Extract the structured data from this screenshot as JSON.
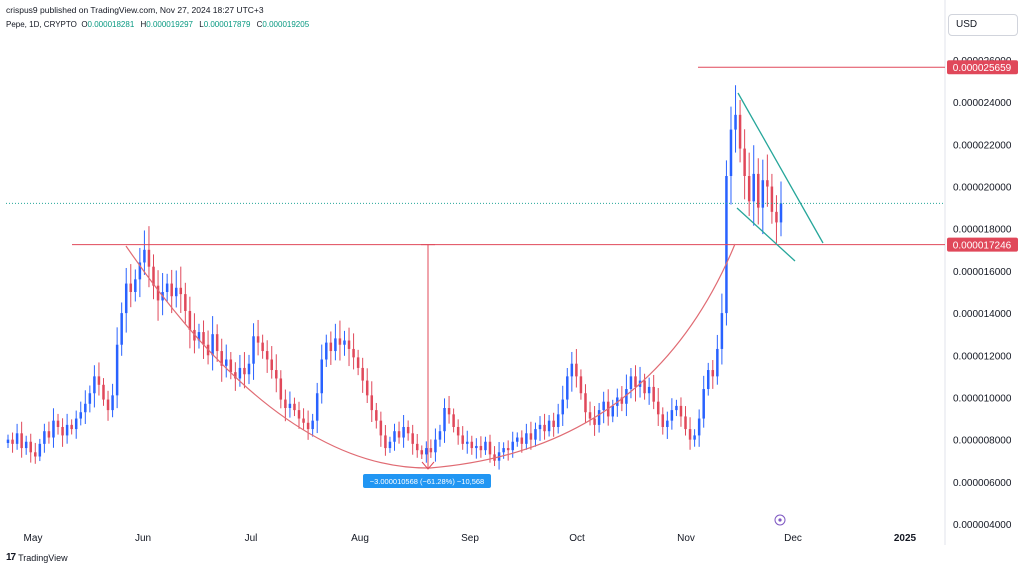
{
  "header": {
    "published": "crispus9 published on TradingView.com, Nov 27, 2024 18:27 UTC+3",
    "symbol": "Pepe, 1D, CRYPTO",
    "o_label": "O",
    "o_value": "0.000018281",
    "h_label": "H",
    "h_value": "0.000019297",
    "l_label": "L",
    "l_value": "0.000017879",
    "c_label": "C",
    "c_value": "0.000019205",
    "currency": "USD"
  },
  "footer": {
    "brand": "TradingView",
    "logo_icon": "tradingview-logo-icon"
  },
  "colors": {
    "up": "#2962ff",
    "down": "#e0485a",
    "level": "#e0485a",
    "wedge": "#26a69a",
    "cup": "#e06b73",
    "measure": "#2196f3"
  },
  "chart_data": {
    "type": "candlestick",
    "y_ticks": [
      "0.000026000",
      "0.000024000",
      "0.000022000",
      "0.000020000",
      "0.000018000",
      "0.000016000",
      "0.000014000",
      "0.000012000",
      "0.000010000",
      "0.000008000",
      "0.000006000",
      "0.000004000"
    ],
    "ylim": [
      4e-06,
      2.6e-05
    ],
    "x_ticks": [
      "May",
      "Jun",
      "Jul",
      "Aug",
      "Sep",
      "Oct",
      "Nov",
      "Dec",
      "2025"
    ],
    "levels": [
      {
        "label": "0.000025659",
        "value": 2.5659e-05
      },
      {
        "label": "0.000017246",
        "value": 1.7246e-05
      }
    ],
    "current_price": 1.9205e-05,
    "measure_label": "−3.000010568 (−61.28%) −10,568",
    "closes": [
      8.0,
      7.8,
      8.3,
      7.6,
      7.9,
      7.4,
      7.2,
      7.8,
      8.4,
      8.1,
      8.9,
      8.6,
      8.2,
      8.7,
      8.5,
      9.0,
      9.3,
      9.7,
      10.2,
      11.0,
      10.6,
      9.9,
      9.4,
      10.1,
      12.5,
      14.0,
      15.4,
      15.0,
      15.6,
      16.4,
      17.0,
      16.2,
      15.3,
      14.6,
      15.0,
      15.4,
      14.8,
      15.2,
      14.9,
      14.1,
      13.2,
      12.7,
      13.1,
      12.5,
      12.0,
      13.0,
      12.2,
      11.5,
      11.8,
      11.2,
      10.9,
      11.4,
      11.1,
      11.6,
      12.9,
      12.6,
      12.2,
      11.8,
      11.3,
      10.9,
      9.9,
      9.5,
      9.7,
      9.4,
      9.0,
      8.8,
      8.5,
      8.9,
      10.2,
      11.8,
      12.6,
      12.2,
      12.8,
      12.5,
      12.7,
      12.3,
      11.9,
      11.4,
      10.8,
      10.1,
      9.4,
      8.9,
      8.2,
      7.6,
      7.9,
      8.4,
      8.1,
      8.6,
      8.3,
      7.8,
      7.5,
      7.3,
      7.6,
      7.4,
      8.0,
      8.4,
      9.5,
      9.2,
      8.6,
      8.2,
      7.8,
      7.9,
      7.6,
      7.7,
      7.5,
      7.9,
      7.3,
      7.0,
      7.4,
      7.6,
      7.5,
      7.9,
      8.1,
      7.8,
      8.3,
      8.0,
      8.5,
      8.7,
      8.4,
      8.9,
      8.6,
      9.2,
      9.9,
      11.0,
      11.6,
      11.0,
      10.2,
      9.3,
      9.0,
      8.7,
      9.4,
      9.8,
      9.1,
      9.6,
      10.0,
      9.7,
      10.4,
      11.0,
      10.5,
      10.8,
      10.2,
      10.5,
      9.8,
      9.2,
      8.6,
      8.9,
      9.4,
      9.6,
      9.1,
      8.5,
      8.0,
      8.2,
      9.0,
      10.4,
      11.3,
      11.0,
      12.3,
      14.0,
      20.5,
      22.7,
      23.4,
      21.8,
      20.5,
      19.3,
      20.6,
      19.0,
      20.3,
      20.0,
      18.8,
      18.3,
      19.2
    ]
  }
}
